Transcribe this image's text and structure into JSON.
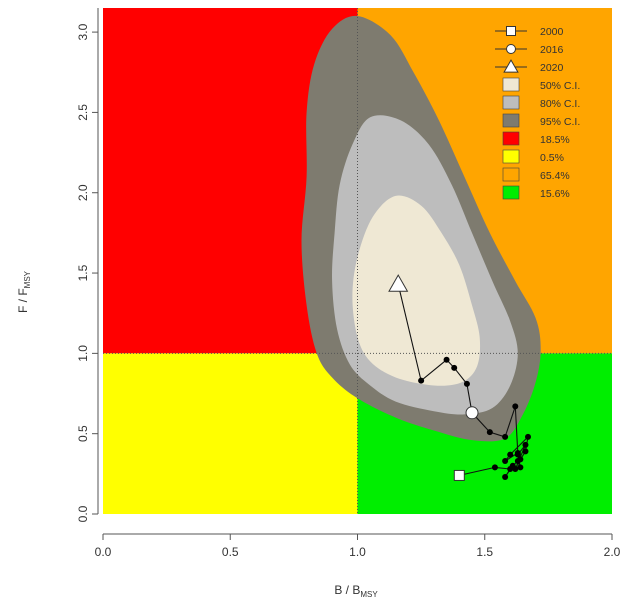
{
  "chart_data": {
    "type": "scatter",
    "subtype": "kobe-plot",
    "xlim": [
      0,
      2
    ],
    "ylim": [
      0,
      3.15
    ],
    "xticks": [
      "0.0",
      "0.5",
      "1.0",
      "1.5",
      "2.0"
    ],
    "yticks": [
      "0.0",
      "0.5",
      "1.0",
      "1.5",
      "2.0",
      "2.5",
      "3.0"
    ],
    "xlabel": {
      "main": "B / B",
      "sub": "MSY"
    },
    "ylabel": {
      "main": "F / F",
      "sub": "MSY"
    },
    "reference_lines": {
      "x": 1.0,
      "y": 1.0,
      "style": "dotted"
    },
    "quadrants": [
      {
        "name": "overfished-overfishing",
        "color": "#ff0000",
        "percent": "18.5%"
      },
      {
        "name": "overfished-not-overfishing",
        "color": "#ffff00",
        "percent": "0.5%"
      },
      {
        "name": "not-overfished-overfishing",
        "color": "#ffa500",
        "percent": "65.4%"
      },
      {
        "name": "not-overfished-not-overfishing",
        "color": "#00ee00",
        "percent": "15.6%"
      }
    ],
    "confidence_regions": [
      {
        "name": "95% C.I.",
        "color": "#7e7b6f",
        "outline": [
          [
            1.0,
            3.1
          ],
          [
            0.9,
            3.02
          ],
          [
            0.83,
            2.8
          ],
          [
            0.8,
            2.5
          ],
          [
            0.8,
            2.1
          ],
          [
            0.78,
            1.7
          ],
          [
            0.8,
            1.3
          ],
          [
            0.84,
            1.0
          ],
          [
            0.9,
            0.85
          ],
          [
            1.0,
            0.72
          ],
          [
            1.15,
            0.6
          ],
          [
            1.3,
            0.52
          ],
          [
            1.45,
            0.46
          ],
          [
            1.58,
            0.47
          ],
          [
            1.65,
            0.62
          ],
          [
            1.7,
            0.82
          ],
          [
            1.72,
            1.02
          ],
          [
            1.7,
            1.22
          ],
          [
            1.62,
            1.45
          ],
          [
            1.52,
            1.75
          ],
          [
            1.42,
            2.1
          ],
          [
            1.32,
            2.45
          ],
          [
            1.22,
            2.75
          ],
          [
            1.13,
            2.98
          ]
        ]
      },
      {
        "name": "80% C.I.",
        "color": "#bdbdbd",
        "outline": [
          [
            1.05,
            2.47
          ],
          [
            0.98,
            2.3
          ],
          [
            0.93,
            2.05
          ],
          [
            0.91,
            1.75
          ],
          [
            0.9,
            1.45
          ],
          [
            0.92,
            1.15
          ],
          [
            0.97,
            0.93
          ],
          [
            1.05,
            0.8
          ],
          [
            1.15,
            0.7
          ],
          [
            1.3,
            0.64
          ],
          [
            1.42,
            0.62
          ],
          [
            1.53,
            0.66
          ],
          [
            1.6,
            0.8
          ],
          [
            1.63,
            1.0
          ],
          [
            1.6,
            1.2
          ],
          [
            1.53,
            1.45
          ],
          [
            1.45,
            1.75
          ],
          [
            1.37,
            2.05
          ],
          [
            1.28,
            2.3
          ],
          [
            1.17,
            2.45
          ]
        ]
      },
      {
        "name": "50% C.I.",
        "color": "#efe8d4",
        "outline": [
          [
            1.15,
            1.98
          ],
          [
            1.06,
            1.85
          ],
          [
            1.0,
            1.6
          ],
          [
            0.98,
            1.35
          ],
          [
            1.0,
            1.1
          ],
          [
            1.05,
            0.95
          ],
          [
            1.15,
            0.85
          ],
          [
            1.3,
            0.8
          ],
          [
            1.41,
            0.82
          ],
          [
            1.47,
            0.92
          ],
          [
            1.48,
            1.1
          ],
          [
            1.45,
            1.3
          ],
          [
            1.4,
            1.55
          ],
          [
            1.33,
            1.75
          ],
          [
            1.25,
            1.92
          ]
        ]
      }
    ],
    "trajectory": [
      [
        1.4,
        0.24
      ],
      [
        1.54,
        0.29
      ],
      [
        1.6,
        0.28
      ],
      [
        1.58,
        0.23
      ],
      [
        1.61,
        0.3
      ],
      [
        1.63,
        0.33
      ],
      [
        1.64,
        0.29
      ],
      [
        1.63,
        0.37
      ],
      [
        1.66,
        0.43
      ],
      [
        1.62,
        0.28
      ],
      [
        1.64,
        0.34
      ],
      [
        1.66,
        0.39
      ],
      [
        1.67,
        0.48
      ],
      [
        1.6,
        0.37
      ],
      [
        1.58,
        0.33
      ],
      [
        1.63,
        0.38
      ],
      [
        1.62,
        0.67
      ],
      [
        1.58,
        0.48
      ],
      [
        1.52,
        0.51
      ],
      [
        1.45,
        0.63
      ],
      [
        1.43,
        0.81
      ],
      [
        1.38,
        0.91
      ],
      [
        1.35,
        0.96
      ],
      [
        1.25,
        0.83
      ],
      [
        1.16,
        1.43
      ]
    ],
    "markers": [
      {
        "label": "2000",
        "shape": "square",
        "x": 1.4,
        "y": 0.24
      },
      {
        "label": "2016",
        "shape": "circle",
        "x": 1.45,
        "y": 0.63
      },
      {
        "label": "2020",
        "shape": "triangle",
        "x": 1.16,
        "y": 1.43
      }
    ],
    "legend": {
      "placement": "top-right",
      "entries": [
        {
          "type": "line-marker",
          "shape": "square",
          "label": "2000"
        },
        {
          "type": "line-marker",
          "shape": "circle",
          "label": "2016"
        },
        {
          "type": "line-marker",
          "shape": "triangle",
          "label": "2020"
        },
        {
          "type": "swatch",
          "color": "#efe8d4",
          "label": "50% C.I."
        },
        {
          "type": "swatch",
          "color": "#bdbdbd",
          "label": "80% C.I."
        },
        {
          "type": "swatch",
          "color": "#7e7b6f",
          "label": "95% C.I."
        },
        {
          "type": "swatch",
          "color": "#ff0000",
          "label": "18.5%"
        },
        {
          "type": "swatch",
          "color": "#ffff00",
          "label": "0.5%"
        },
        {
          "type": "swatch",
          "color": "#ffa500",
          "label": "65.4%"
        },
        {
          "type": "swatch",
          "color": "#00ee00",
          "label": "15.6%"
        }
      ]
    }
  }
}
